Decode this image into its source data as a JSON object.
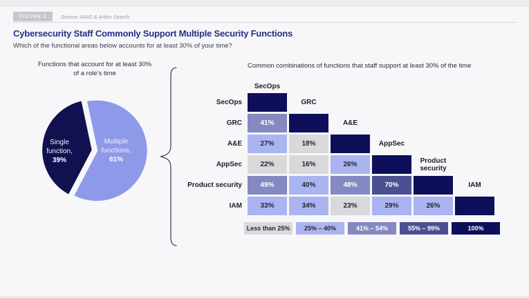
{
  "header": {
    "figure_label": "FIGURE 2",
    "source": "Source: IANS & Artico Search",
    "title": "Cybersecurity Staff Commonly Support Multiple Security Functions",
    "subtitle": "Which of the functional areas below accounts for at least 30% of your time?"
  },
  "left_panel": {
    "title_line1": "Functions that account for at least 30%",
    "title_line2": "of a role’s time"
  },
  "right_panel": {
    "title": "Common combinations of functions that staff support at least 30% of the time"
  },
  "colors": {
    "title_accent": "#2a2d87",
    "buckets": {
      "lt25": {
        "bg": "#d9d9dc",
        "text": "#26262f"
      },
      "p25_40": {
        "bg": "#aab4f0",
        "text": "#26262f"
      },
      "p41_54": {
        "bg": "#8489c1",
        "text": "#ffffff"
      },
      "p55_99": {
        "bg": "#4c4f92",
        "text": "#ffffff"
      },
      "p100": {
        "bg": "#0e0f5a",
        "text": "#ffffff"
      }
    }
  },
  "legend": [
    {
      "label": "Less than 25%",
      "bucket": "lt25"
    },
    {
      "label": "25% – 40%",
      "bucket": "p25_40"
    },
    {
      "label": "41% – 54%",
      "bucket": "p41_54"
    },
    {
      "label": "55% – 99%",
      "bucket": "p55_99"
    },
    {
      "label": "100%",
      "bucket": "p100"
    }
  ],
  "chart_data": [
    {
      "type": "pie",
      "title": "Functions that account for at least 30% of a role's time",
      "slices": [
        {
          "name": "Single function",
          "display": "Single function,",
          "value": 39,
          "pct": "39%",
          "color": "#12114f"
        },
        {
          "name": "Multiple functions",
          "display": "Multiple functions,",
          "value": 61,
          "pct": "61%",
          "color": "#8e99e9"
        }
      ]
    },
    {
      "type": "heatmap",
      "title": "Common combinations of functions that staff support at least 30% of the time",
      "rows": [
        "SecOps",
        "GRC",
        "A&E",
        "AppSec",
        "Product security",
        "IAM"
      ],
      "cols": [
        "SecOps",
        "GRC",
        "A&E",
        "AppSec",
        "Product security",
        "IAM"
      ],
      "values": [
        [
          100
        ],
        [
          41,
          100
        ],
        [
          27,
          18,
          100
        ],
        [
          22,
          16,
          26,
          100
        ],
        [
          49,
          40,
          48,
          70,
          100
        ],
        [
          33,
          34,
          23,
          29,
          26,
          100
        ]
      ],
      "value_suffix": "%",
      "diagonal_value_hidden": true,
      "emphasized_cells": [
        {
          "row": 5,
          "col": 1
        }
      ],
      "bucket_ranges": {
        "lt25": "0-24",
        "p25_40": "25-40",
        "p41_54": "41-54",
        "p55_99": "55-99",
        "p100": "100"
      },
      "legend_position": "bottom"
    }
  ]
}
